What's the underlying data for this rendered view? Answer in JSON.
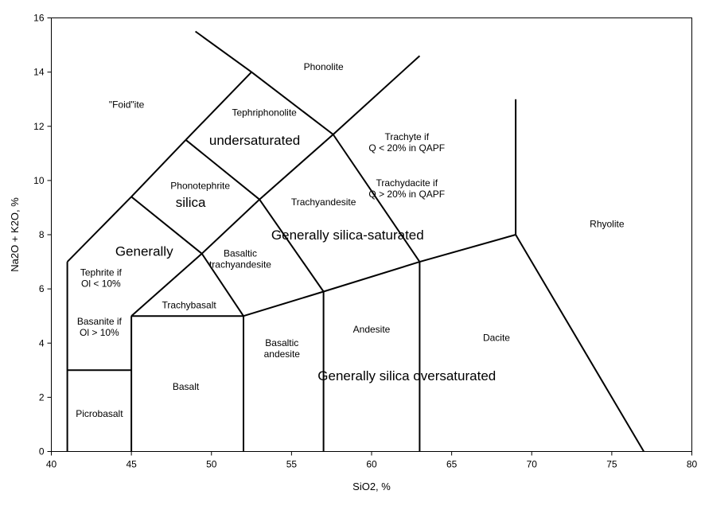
{
  "chart_data": {
    "type": "scatter",
    "title": "",
    "xlabel": "SiO2, %",
    "ylabel": "Na2O + K2O, %",
    "xlim": [
      40,
      80
    ],
    "ylim": [
      0,
      16
    ],
    "x_ticks": [
      40,
      45,
      50,
      55,
      60,
      65,
      70,
      75,
      80
    ],
    "y_ticks": [
      0,
      2,
      4,
      6,
      8,
      10,
      12,
      14,
      16
    ],
    "grid": false,
    "boundaries": [
      {
        "name": "ultrabasic-lower-left",
        "points": [
          [
            41,
            0
          ],
          [
            41,
            7
          ]
        ]
      },
      {
        "name": "picrobasalt-top",
        "points": [
          [
            41,
            3
          ],
          [
            45,
            3
          ]
        ]
      },
      {
        "name": "basalt-left",
        "points": [
          [
            45,
            0
          ],
          [
            45,
            5
          ]
        ]
      },
      {
        "name": "basalt-top",
        "points": [
          [
            45,
            5
          ],
          [
            52,
            5
          ]
        ]
      },
      {
        "name": "basalt-right",
        "points": [
          [
            52,
            0
          ],
          [
            52,
            5
          ]
        ]
      },
      {
        "name": "basaltic-andesite-right",
        "points": [
          [
            57,
            0
          ],
          [
            57,
            5.9
          ]
        ]
      },
      {
        "name": "andesite-right",
        "points": [
          [
            63,
            0
          ],
          [
            63,
            7
          ]
        ]
      },
      {
        "name": "saturation-line",
        "points": [
          [
            52,
            5
          ],
          [
            57,
            5.9
          ],
          [
            63,
            7
          ],
          [
            69,
            8
          ]
        ]
      },
      {
        "name": "dacite-rhyolite",
        "points": [
          [
            69,
            8
          ],
          [
            77,
            0
          ]
        ]
      },
      {
        "name": "trachyte-rhyolite",
        "points": [
          [
            69,
            8
          ],
          [
            69,
            13
          ]
        ]
      },
      {
        "name": "trachybasalt-left",
        "points": [
          [
            45,
            5
          ],
          [
            49.4,
            7.3
          ]
        ]
      },
      {
        "name": "trachybasalt-right",
        "points": [
          [
            49.4,
            7.3
          ],
          [
            52,
            5
          ]
        ]
      },
      {
        "name": "tephrite-top",
        "points": [
          [
            41,
            7
          ],
          [
            45,
            9.4
          ]
        ]
      },
      {
        "name": "tephrite-trachybasalt",
        "points": [
          [
            45,
            9.4
          ],
          [
            49.4,
            7.3
          ]
        ]
      },
      {
        "name": "basaltic-trachyandesite-right",
        "points": [
          [
            53,
            9.3
          ],
          [
            57,
            5.9
          ]
        ]
      },
      {
        "name": "phonotephrite-lower",
        "points": [
          [
            49.4,
            7.3
          ],
          [
            53,
            9.3
          ]
        ]
      },
      {
        "name": "phonotephrite-upper",
        "points": [
          [
            45,
            9.4
          ],
          [
            48.4,
            11.5
          ]
        ]
      },
      {
        "name": "phonotephrite-right",
        "points": [
          [
            48.4,
            11.5
          ],
          [
            53,
            9.3
          ]
        ]
      },
      {
        "name": "tephriphonolite-left",
        "points": [
          [
            48.4,
            11.5
          ],
          [
            52.5,
            14
          ]
        ]
      },
      {
        "name": "tephriphonolite-right",
        "points": [
          [
            52.5,
            14
          ],
          [
            57.6,
            11.7
          ]
        ]
      },
      {
        "name": "phonolite-top",
        "points": [
          [
            52.5,
            14
          ],
          [
            49,
            15.5
          ]
        ]
      },
      {
        "name": "trachyandesite-upper",
        "points": [
          [
            53,
            9.3
          ],
          [
            57.6,
            11.7
          ]
        ]
      },
      {
        "name": "trachyte-left-extension",
        "points": [
          [
            57.6,
            11.7
          ],
          [
            63,
            14.6
          ]
        ]
      },
      {
        "name": "trachyandesite-right",
        "points": [
          [
            57.6,
            11.7
          ],
          [
            63,
            7
          ]
        ]
      }
    ],
    "field_labels": [
      {
        "name": "phonolite",
        "lines": [
          "Phonolite"
        ],
        "x": 57,
        "y": 14.2
      },
      {
        "name": "foidite",
        "lines": [
          "\"Foid\"ite"
        ],
        "x": 44.7,
        "y": 12.8
      },
      {
        "name": "tephriphonolite",
        "lines": [
          "Tephriphonolite"
        ],
        "x": 53.3,
        "y": 12.5
      },
      {
        "name": "trachyte",
        "lines": [
          "Trachyte if",
          "Q < 20% in QAPF"
        ],
        "x": 62.2,
        "y": 11.4
      },
      {
        "name": "trachydacite",
        "lines": [
          "Trachydacite if",
          "Q > 20% in QAPF"
        ],
        "x": 62.2,
        "y": 9.7
      },
      {
        "name": "phonotephrite",
        "lines": [
          "Phonotephrite"
        ],
        "x": 49.3,
        "y": 9.8
      },
      {
        "name": "trachyandesite",
        "lines": [
          "Trachyandesite"
        ],
        "x": 57,
        "y": 9.2
      },
      {
        "name": "rhyolite",
        "lines": [
          "Rhyolite"
        ],
        "x": 74.7,
        "y": 8.4
      },
      {
        "name": "tephrite",
        "lines": [
          "Tephrite if",
          "Ol < 10%"
        ],
        "x": 43.1,
        "y": 6.4
      },
      {
        "name": "basaltic-trachyandesite",
        "lines": [
          "Basaltic",
          "trachyandesite"
        ],
        "x": 51.8,
        "y": 7.1
      },
      {
        "name": "trachybasalt",
        "lines": [
          "Trachybasalt"
        ],
        "x": 48.6,
        "y": 5.4
      },
      {
        "name": "basanite",
        "lines": [
          "Basanite if",
          "Ol > 10%"
        ],
        "x": 43,
        "y": 4.6
      },
      {
        "name": "andesite",
        "lines": [
          "Andesite"
        ],
        "x": 60,
        "y": 4.5
      },
      {
        "name": "dacite",
        "lines": [
          "Dacite"
        ],
        "x": 67.8,
        "y": 4.2
      },
      {
        "name": "basaltic-andesite",
        "lines": [
          "Basaltic",
          "andesite"
        ],
        "x": 54.4,
        "y": 3.8
      },
      {
        "name": "basalt",
        "lines": [
          "Basalt"
        ],
        "x": 48.4,
        "y": 2.4
      },
      {
        "name": "picrobasalt",
        "lines": [
          "Picrobasalt"
        ],
        "x": 43,
        "y": 1.4
      }
    ],
    "annotations": [
      {
        "name": "undersaturated",
        "text": "undersaturated",
        "x": 52.7,
        "y": 11.5
      },
      {
        "name": "silica",
        "text": "silica",
        "x": 48.7,
        "y": 9.2
      },
      {
        "name": "generally",
        "text": "Generally",
        "x": 45.8,
        "y": 7.4
      },
      {
        "name": "silica-saturated",
        "text": "Generally silica-saturated",
        "x": 58.5,
        "y": 8
      },
      {
        "name": "silica-oversaturated",
        "text": "Generally silica oversaturated",
        "x": 62.2,
        "y": 2.8
      }
    ]
  }
}
